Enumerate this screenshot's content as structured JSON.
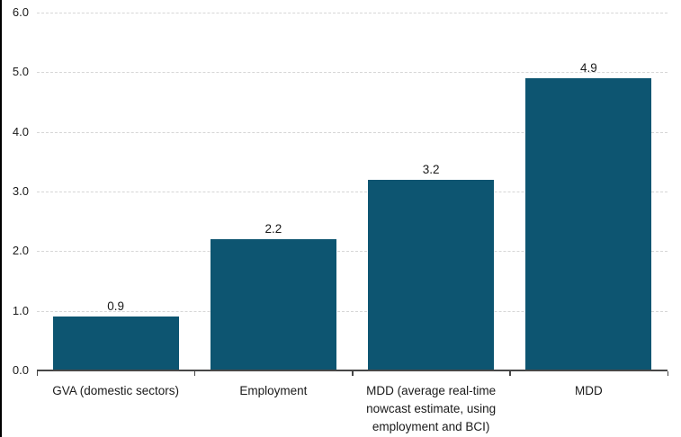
{
  "chart_data": {
    "type": "bar",
    "title": "",
    "xlabel": "",
    "ylabel": "",
    "categories": [
      "GVA (domestic sectors)",
      "Employment",
      "MDD (average real-time nowcast estimate, using employment and BCI)",
      "MDD"
    ],
    "values": [
      0.9,
      2.2,
      3.2,
      4.9
    ],
    "data_labels": [
      "0.9",
      "2.2",
      "3.2",
      "4.9"
    ],
    "ylim": [
      0,
      6
    ],
    "ytick_step": 1,
    "ytick_labels": [
      "0.0",
      "1.0",
      "2.0",
      "3.0",
      "4.0",
      "5.0",
      "6.0"
    ],
    "grid": "horizontal-dashed",
    "legend": "none"
  },
  "colors": {
    "bar": "#0D5571",
    "gridline": "#d6d6d6",
    "axis": "#474747",
    "text": "#1a1a1a",
    "page_left_border": "#000000",
    "background": "#ffffff"
  }
}
